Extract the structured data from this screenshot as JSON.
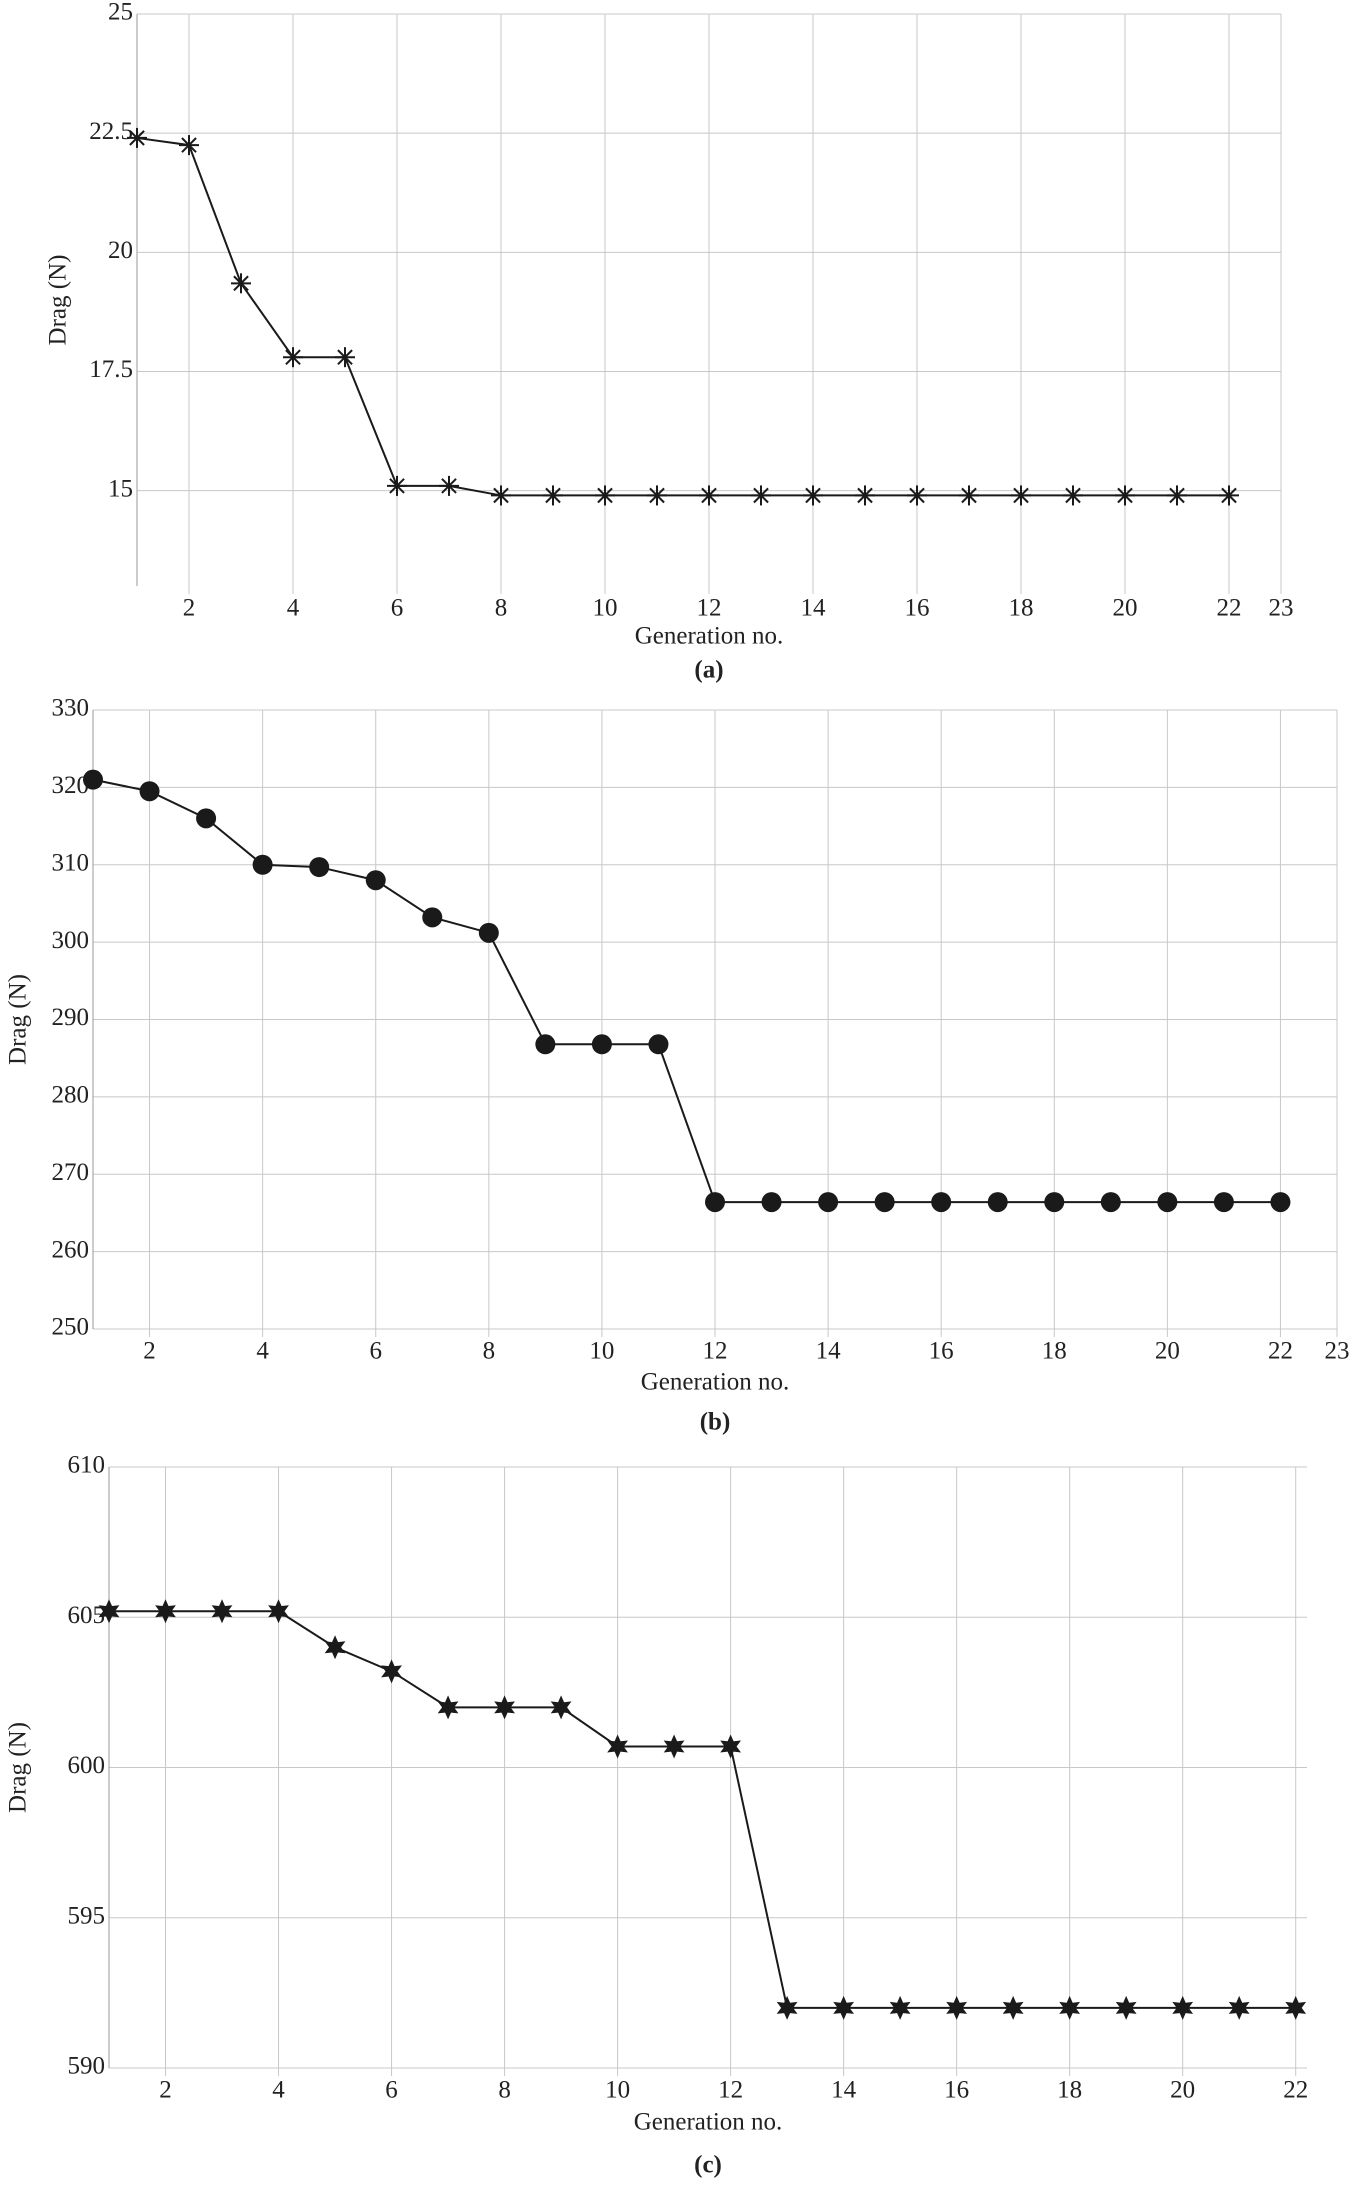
{
  "chart_data": [
    {
      "type": "line",
      "marker": "asterisk",
      "color": "#1a1a1a",
      "panel_label": "(a)",
      "ylabel": "Drag (N)",
      "xlabel": "Generation no.",
      "x": [
        1,
        2,
        3,
        4,
        5,
        6,
        7,
        8,
        9,
        10,
        11,
        12,
        13,
        14,
        15,
        16,
        17,
        18,
        19,
        20,
        21,
        22
      ],
      "values": [
        22.4,
        22.25,
        19.35,
        17.8,
        17.8,
        15.1,
        15.1,
        14.9,
        14.9,
        14.9,
        14.9,
        14.9,
        14.9,
        14.9,
        14.9,
        14.9,
        14.9,
        14.9,
        14.9,
        14.9,
        14.9,
        14.9
      ],
      "xlim": [
        1,
        23
      ],
      "xticks": [
        2,
        4,
        6,
        8,
        10,
        12,
        14,
        16,
        18,
        20,
        22,
        23
      ],
      "ylim": [
        13,
        25
      ],
      "yticks": [
        15,
        17.5,
        20,
        22.5,
        25
      ],
      "grid": true
    },
    {
      "type": "line",
      "marker": "circle",
      "color": "#1a1a1a",
      "panel_label": "(b)",
      "ylabel": "Drag (N)",
      "xlabel": "Generation no.",
      "x": [
        1,
        2,
        3,
        4,
        5,
        6,
        7,
        8,
        9,
        10,
        11,
        12,
        13,
        14,
        15,
        16,
        17,
        18,
        19,
        20,
        21,
        22
      ],
      "values": [
        321,
        319.5,
        316,
        310,
        309.7,
        308,
        303.2,
        301.2,
        286.8,
        286.8,
        286.8,
        266.4,
        266.4,
        266.4,
        266.4,
        266.4,
        266.4,
        266.4,
        266.4,
        266.4,
        266.4,
        266.4
      ],
      "xlim": [
        1,
        23
      ],
      "xticks": [
        2,
        4,
        6,
        8,
        10,
        12,
        14,
        16,
        18,
        20,
        22,
        23
      ],
      "ylim": [
        250,
        330
      ],
      "yticks": [
        250,
        260,
        270,
        280,
        290,
        300,
        310,
        320,
        330
      ],
      "grid": true
    },
    {
      "type": "line",
      "marker": "star",
      "color": "#1a1a1a",
      "panel_label": "(c)",
      "ylabel": "Drag (N)",
      "xlabel": "Generation no.",
      "x": [
        1,
        2,
        3,
        4,
        5,
        6,
        7,
        8,
        9,
        10,
        11,
        12,
        13,
        14,
        15,
        16,
        17,
        18,
        19,
        20,
        21,
        22
      ],
      "values": [
        605.2,
        605.2,
        605.2,
        605.2,
        604,
        603.2,
        602,
        602,
        602,
        600.7,
        600.7,
        600.7,
        592,
        592,
        592,
        592,
        592,
        592,
        592,
        592,
        592,
        592
      ],
      "xlim": [
        1,
        22.2
      ],
      "xticks": [
        2,
        4,
        6,
        8,
        10,
        12,
        14,
        16,
        18,
        20,
        22
      ],
      "ylim": [
        590,
        610
      ],
      "yticks": [
        590,
        595,
        600,
        605,
        610
      ],
      "grid": true
    }
  ]
}
